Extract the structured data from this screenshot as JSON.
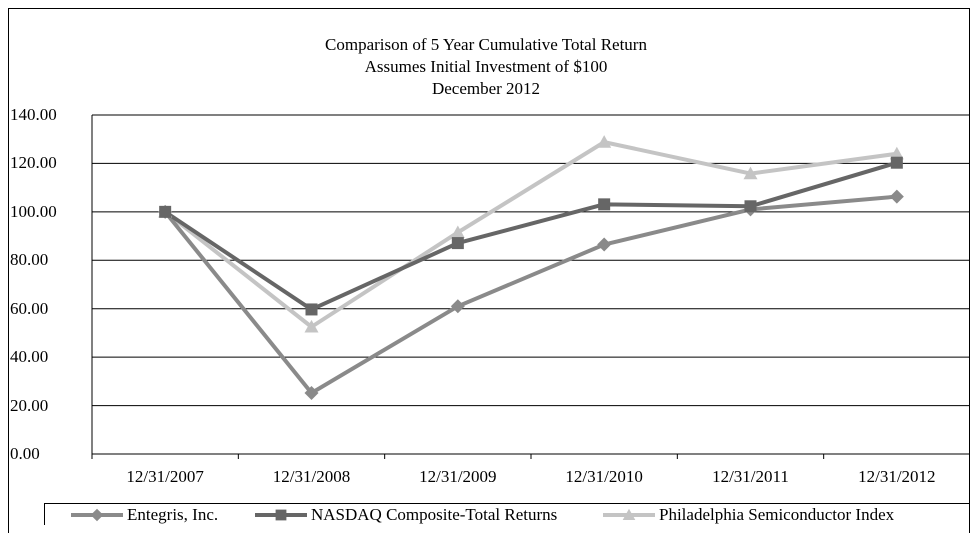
{
  "chart_data": {
    "type": "line",
    "title_lines": [
      "Comparison of 5 Year Cumulative Total Return",
      "Assumes Initial Investment of $100",
      "December 2012"
    ],
    "categories": [
      "12/31/2007",
      "12/31/2008",
      "12/31/2009",
      "12/31/2010",
      "12/31/2011",
      "12/31/2012"
    ],
    "yticks": [
      "0.00",
      "20.00",
      "40.00",
      "60.00",
      "80.00",
      "100.00",
      "120.00",
      "140.00"
    ],
    "ylim": [
      0,
      140
    ],
    "grid": "horizontal",
    "legend_position": "bottom",
    "series": [
      {
        "name": "Entegris, Inc.",
        "marker": "diamond",
        "color": "#8a8a8a",
        "values": [
          100.0,
          25.2,
          61.0,
          86.5,
          101.0,
          106.3
        ]
      },
      {
        "name": "NASDAQ Composite-Total Returns",
        "marker": "square",
        "color": "#666666",
        "values": [
          100.0,
          59.7,
          87.1,
          103.1,
          102.3,
          120.3
        ]
      },
      {
        "name": "Philadelphia Semiconductor Index",
        "marker": "triangle",
        "color": "#c4c4c4",
        "values": [
          100.0,
          52.5,
          91.5,
          128.8,
          115.8,
          124.0
        ]
      }
    ]
  }
}
